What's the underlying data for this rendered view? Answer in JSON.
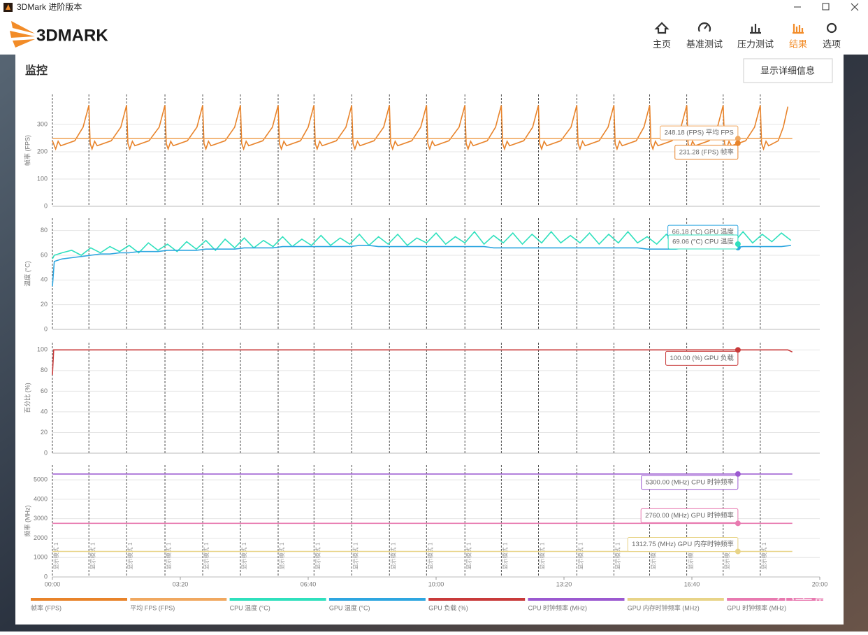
{
  "window_title": "3DMark 进阶版本",
  "logo": "3DMARK",
  "nav": [
    "主页",
    "基准测试",
    "压力测试",
    "结果",
    "选项"
  ],
  "active_nav": 3,
  "section_title": "监控",
  "button": "显示详细信息",
  "watermark": "小黑盒",
  "markers": {
    "x": [
      0,
      57,
      116,
      176,
      235,
      294,
      353,
      409,
      468,
      527,
      585,
      645,
      702,
      760,
      820,
      878,
      934,
      992,
      1049,
      1107
    ],
    "label": "显示模式 1"
  },
  "cursor_x": 1072,
  "chart_data": [
    {
      "type": "line",
      "y_label": "帧率 (FPS)",
      "xlim": [
        0,
        1200
      ],
      "ylim": [
        0,
        410
      ],
      "yticks": [
        0,
        100,
        200,
        300
      ],
      "series": [
        {
          "name": "帧率 (FPS)",
          "color": "#e8832a",
          "x": [
            0,
            5,
            9,
            13,
            35,
            48,
            57,
            59,
            62,
            66,
            70,
            92,
            107,
            116,
            118,
            121,
            125,
            129,
            151,
            167,
            176,
            178,
            181,
            185,
            189,
            211,
            226,
            235,
            237,
            240,
            244,
            248,
            270,
            285,
            294,
            296,
            299,
            303,
            307,
            329,
            344,
            353,
            355,
            358,
            362,
            366,
            388,
            400,
            409,
            411,
            414,
            418,
            422,
            444,
            459,
            468,
            470,
            473,
            477,
            481,
            503,
            518,
            527,
            529,
            532,
            536,
            540,
            562,
            576,
            585,
            587,
            590,
            594,
            598,
            620,
            636,
            645,
            647,
            650,
            654,
            658,
            680,
            693,
            702,
            704,
            707,
            711,
            715,
            737,
            751,
            760,
            762,
            765,
            769,
            773,
            795,
            811,
            820,
            822,
            825,
            829,
            833,
            855,
            869,
            878,
            880,
            883,
            887,
            891,
            913,
            925,
            934,
            936,
            939,
            943,
            947,
            969,
            983,
            992,
            994,
            997,
            1001,
            1005,
            1027,
            1040,
            1049,
            1051,
            1054,
            1058,
            1062,
            1084,
            1098,
            1107,
            1109,
            1112,
            1116,
            1120,
            1135,
            1143,
            1150
          ],
          "values": [
            240,
            210,
            238,
            222,
            240,
            290,
            370,
            230,
            210,
            238,
            222,
            240,
            290,
            370,
            230,
            210,
            238,
            222,
            240,
            290,
            370,
            230,
            210,
            238,
            222,
            240,
            290,
            370,
            230,
            210,
            238,
            222,
            240,
            290,
            370,
            230,
            210,
            238,
            222,
            240,
            290,
            370,
            230,
            210,
            238,
            222,
            240,
            290,
            370,
            230,
            210,
            238,
            222,
            240,
            290,
            370,
            230,
            210,
            238,
            222,
            240,
            290,
            370,
            230,
            210,
            238,
            222,
            240,
            290,
            370,
            230,
            210,
            238,
            222,
            240,
            290,
            370,
            230,
            210,
            238,
            222,
            240,
            290,
            370,
            230,
            210,
            238,
            222,
            240,
            290,
            370,
            230,
            210,
            238,
            222,
            240,
            290,
            370,
            230,
            210,
            238,
            222,
            240,
            290,
            370,
            230,
            210,
            238,
            222,
            240,
            290,
            370,
            230,
            210,
            238,
            222,
            240,
            290,
            370,
            230,
            210,
            238,
            222,
            240,
            290,
            370,
            230,
            210,
            238,
            222,
            240,
            290,
            370,
            230,
            210,
            238,
            222,
            240,
            290,
            365
          ]
        },
        {
          "name": "平均 FPS (FPS)",
          "color": "#f0a860",
          "x": [
            0,
            1157
          ],
          "values": [
            248.18,
            248.18
          ]
        }
      ],
      "annotations": [
        {
          "value": 248.18,
          "label": "248.18 (FPS) 平均 FPS",
          "color": "#f0a860"
        },
        {
          "value": 231.28,
          "label": "231.28 (FPS) 帧率",
          "color": "#e8832a"
        }
      ]
    },
    {
      "type": "line",
      "y_label": "温度 (°C)",
      "xlim": [
        0,
        1200
      ],
      "ylim": [
        0,
        90
      ],
      "yticks": [
        0,
        20,
        40,
        60,
        80
      ],
      "x": [
        0,
        3,
        15,
        30,
        45,
        60,
        75,
        90,
        105,
        120,
        135,
        150,
        165,
        180,
        195,
        210,
        225,
        240,
        255,
        270,
        285,
        300,
        315,
        330,
        345,
        360,
        375,
        390,
        405,
        420,
        435,
        450,
        465,
        480,
        495,
        510,
        525,
        540,
        555,
        570,
        585,
        600,
        615,
        630,
        645,
        660,
        675,
        690,
        705,
        720,
        735,
        750,
        765,
        780,
        795,
        810,
        825,
        840,
        855,
        870,
        885,
        900,
        915,
        930,
        945,
        960,
        975,
        990,
        1005,
        1020,
        1035,
        1050,
        1065,
        1080,
        1095,
        1110,
        1125,
        1140,
        1155
      ],
      "series": [
        {
          "name": "CPU 温度 (°C)",
          "color": "#2fe0bd",
          "values": [
            57,
            60,
            62,
            64,
            60,
            66,
            62,
            67,
            63,
            68,
            62,
            70,
            64,
            69,
            63,
            71,
            65,
            72,
            64,
            73,
            66,
            74,
            66,
            72,
            67,
            75,
            67,
            73,
            68,
            76,
            68,
            74,
            69,
            77,
            68,
            75,
            69,
            77,
            68,
            74,
            70,
            78,
            69,
            75,
            70,
            79,
            69,
            76,
            70,
            78,
            69,
            77,
            70,
            79,
            70,
            76,
            70,
            78,
            69,
            77,
            70,
            79,
            70,
            75,
            69,
            77,
            70,
            78,
            69,
            76,
            70,
            78,
            70,
            79,
            70,
            77,
            71,
            78,
            72
          ]
        },
        {
          "name": "GPU 温度 (°C)",
          "color": "#2ea6e0",
          "values": [
            35,
            55,
            57,
            58,
            59,
            60,
            61,
            61,
            62,
            62,
            63,
            63,
            63,
            64,
            64,
            64,
            64,
            65,
            65,
            65,
            65,
            66,
            66,
            66,
            66,
            67,
            67,
            67,
            67,
            67,
            67,
            67,
            67,
            68,
            68,
            67,
            67,
            67,
            67,
            67,
            67,
            67,
            67,
            67,
            67,
            67,
            67,
            66,
            66,
            66,
            66,
            66,
            66,
            66,
            66,
            66,
            66,
            66,
            66,
            66,
            66,
            66,
            66,
            65,
            65,
            65,
            65,
            66,
            66,
            66,
            66,
            66,
            66,
            67,
            67,
            67,
            67,
            67,
            68
          ]
        }
      ],
      "annotations": [
        {
          "value": 66.18,
          "label": "66.18 (°C) GPU 温度",
          "color": "#2ea6e0"
        },
        {
          "value": 69.06,
          "label": "69.06 (°C) CPU 温度",
          "color": "#2fe0bd"
        }
      ]
    },
    {
      "type": "line",
      "y_label": "百分比 (%)",
      "xlim": [
        0,
        1200
      ],
      "ylim": [
        0,
        107
      ],
      "yticks": [
        0,
        20,
        40,
        60,
        80,
        100
      ],
      "series": [
        {
          "name": "GPU 负载 (%)",
          "color": "#c83a3a",
          "x": [
            0,
            2,
            1150,
            1157
          ],
          "values": [
            76,
            100,
            100,
            98
          ]
        }
      ],
      "annotations": [
        {
          "value": 100,
          "label": "100.00 (%) GPU 负载",
          "color": "#c83a3a"
        }
      ]
    },
    {
      "type": "line",
      "y_label": "频率 (MHz)",
      "xlim": [
        0,
        1200
      ],
      "ylim": [
        0,
        5760
      ],
      "yticks": [
        0,
        1000,
        2000,
        3000,
        4000,
        5000
      ],
      "xticks": [
        {
          "value": 0,
          "label": "00:00"
        },
        {
          "value": 200,
          "label": "03:20"
        },
        {
          "value": 400,
          "label": "06:40"
        },
        {
          "value": 600,
          "label": "10:00"
        },
        {
          "value": 800,
          "label": "13:20"
        },
        {
          "value": 1000,
          "label": "16:40"
        },
        {
          "value": 1200,
          "label": "20:00"
        }
      ],
      "series": [
        {
          "name": "CPU 时钟频率 (MHz)",
          "color": "#9b59d0",
          "x": [
            0,
            1157
          ],
          "values": [
            5300,
            5300
          ]
        },
        {
          "name": "GPU 内存时钟频率 (MHz)",
          "color": "#e8d488",
          "x": [
            0,
            1157
          ],
          "values": [
            1312.75,
            1312.75
          ]
        },
        {
          "name": "GPU 时钟频率 (MHz)",
          "color": "#e87ab0",
          "x": [
            0,
            1157
          ],
          "values": [
            2760,
            2760
          ]
        }
      ],
      "annotations": [
        {
          "value": 5300,
          "label": "5300.00 (MHz) CPU 时钟频率",
          "color": "#9b59d0"
        },
        {
          "value": 2760,
          "label": "2760.00 (MHz) GPU 时钟频率",
          "color": "#e87ab0"
        },
        {
          "value": 1312.75,
          "label": "1312.75 (MHz) GPU 内存时钟频率",
          "color": "#e8d488"
        }
      ]
    }
  ]
}
